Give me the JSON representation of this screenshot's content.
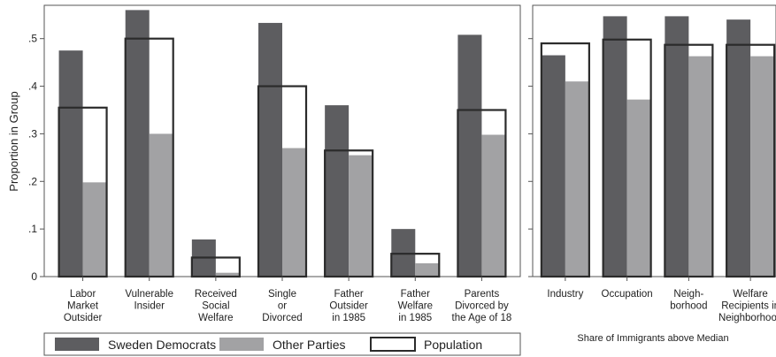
{
  "chart_data": [
    {
      "type": "bar",
      "ylabel": "Proportion in Group",
      "ylim": [
        0,
        0.57
      ],
      "yticks": [
        0,
        0.1,
        0.2,
        0.3,
        0.4,
        0.5
      ],
      "ytick_labels": [
        "0",
        ".1",
        ".2",
        ".3",
        ".4",
        ".5"
      ],
      "categories": [
        [
          "Labor",
          "Market",
          "Outsider"
        ],
        [
          "Vulnerable",
          "Insider"
        ],
        [
          "Received",
          "Social",
          "Welfare"
        ],
        [
          "Single",
          "or",
          "Divorced"
        ],
        [
          "Father",
          "Outsider",
          "in 1985"
        ],
        [
          "Father",
          "Welfare",
          "in 1985"
        ],
        [
          "Parents",
          "Divorced by",
          "the Age of 18"
        ]
      ],
      "series": [
        {
          "name": "Sweden Democrats",
          "values": [
            0.475,
            0.56,
            0.078,
            0.533,
            0.36,
            0.1,
            0.508
          ]
        },
        {
          "name": "Other Parties",
          "values": [
            0.198,
            0.3,
            0.008,
            0.27,
            0.255,
            0.028,
            0.298
          ]
        },
        {
          "name": "Population",
          "values": [
            0.355,
            0.5,
            0.04,
            0.4,
            0.265,
            0.048,
            0.35
          ]
        }
      ]
    },
    {
      "type": "bar",
      "ylim": [
        0,
        0.57
      ],
      "yticks": [
        0,
        0.1,
        0.2,
        0.3,
        0.4,
        0.5
      ],
      "xlabel": "Share of Immigrants above Median",
      "categories": [
        [
          "Industry"
        ],
        [
          "Occupation"
        ],
        [
          "Neigh-",
          "borhood"
        ],
        [
          "Welfare",
          "Recipients in",
          "Neighborhood"
        ]
      ],
      "series": [
        {
          "name": "Sweden Democrats",
          "values": [
            0.465,
            0.547,
            0.547,
            0.54
          ]
        },
        {
          "name": "Other Parties",
          "values": [
            0.41,
            0.372,
            0.463,
            0.463
          ]
        },
        {
          "name": "Population",
          "values": [
            0.49,
            0.498,
            0.487,
            0.487
          ]
        }
      ]
    }
  ],
  "legend": {
    "placement": "bottom",
    "items": [
      {
        "label": "Sweden Democrats",
        "color": "#5d5d60"
      },
      {
        "label": "Other Parties",
        "color": "#a2a2a4"
      },
      {
        "label": "Population",
        "color": "#ffffff"
      }
    ]
  },
  "colors": {
    "dark": "#5d5d60",
    "light": "#a2a2a4",
    "outline": "#2b2b2b"
  }
}
